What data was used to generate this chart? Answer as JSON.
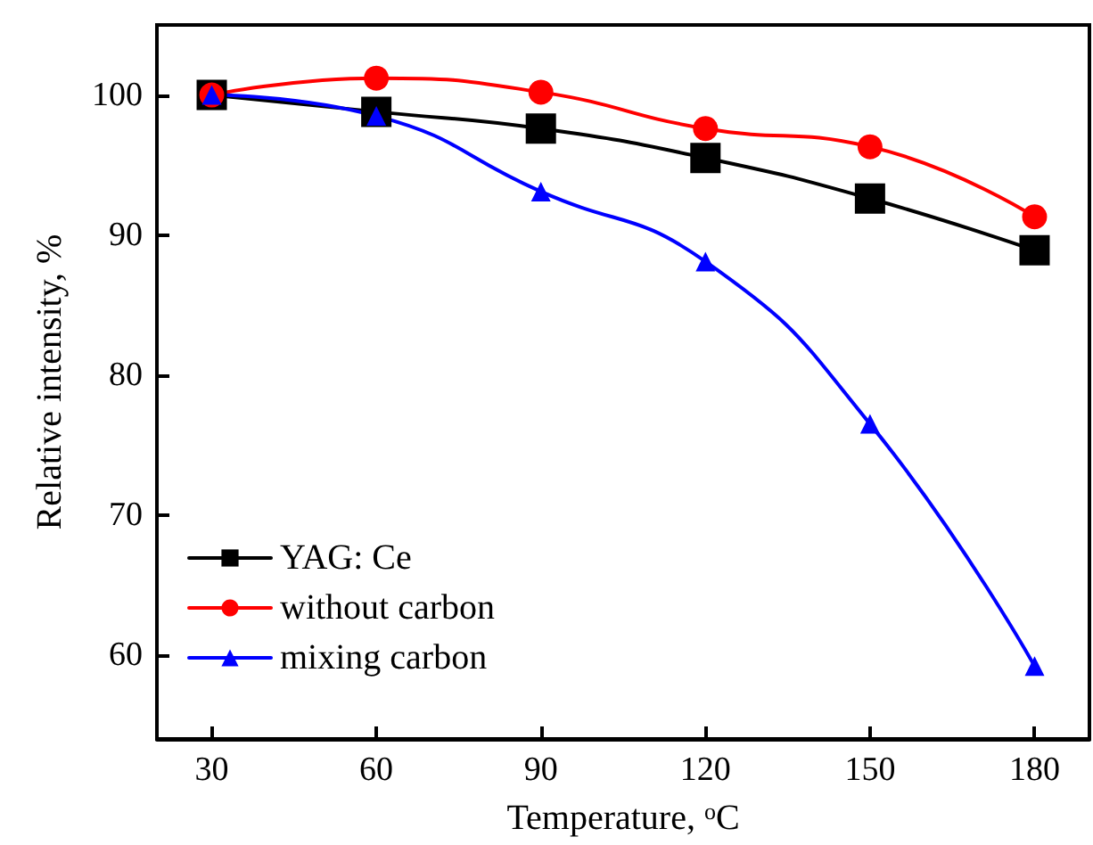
{
  "chart_data": {
    "type": "line",
    "xlabel": "Temperature, $^{o}$C",
    "ylabel": "Relative intensity, %",
    "x": [
      30,
      60,
      90,
      120,
      150,
      180
    ],
    "series": [
      {
        "name": "YAG: Ce",
        "color": "#000000",
        "marker": "square",
        "values": [
          100,
          98.8,
          97.6,
          95.5,
          92.6,
          88.9
        ]
      },
      {
        "name": "without carbon",
        "color": "#ff0000",
        "marker": "circle",
        "values": [
          100,
          101.2,
          100.2,
          97.6,
          96.3,
          91.3
        ]
      },
      {
        "name": "mixing carbon",
        "color": "#0000ff",
        "marker": "triangle",
        "values": [
          100,
          98.5,
          93.1,
          88.1,
          76.5,
          59.2
        ]
      }
    ],
    "xlim": [
      20,
      190
    ],
    "xticks": [
      30,
      60,
      90,
      120,
      150,
      180
    ],
    "ylim": [
      54,
      105
    ],
    "yticks": [
      60,
      70,
      80,
      90,
      100
    ],
    "grid": false,
    "legend": "bottom left",
    "line_style": "solid"
  }
}
